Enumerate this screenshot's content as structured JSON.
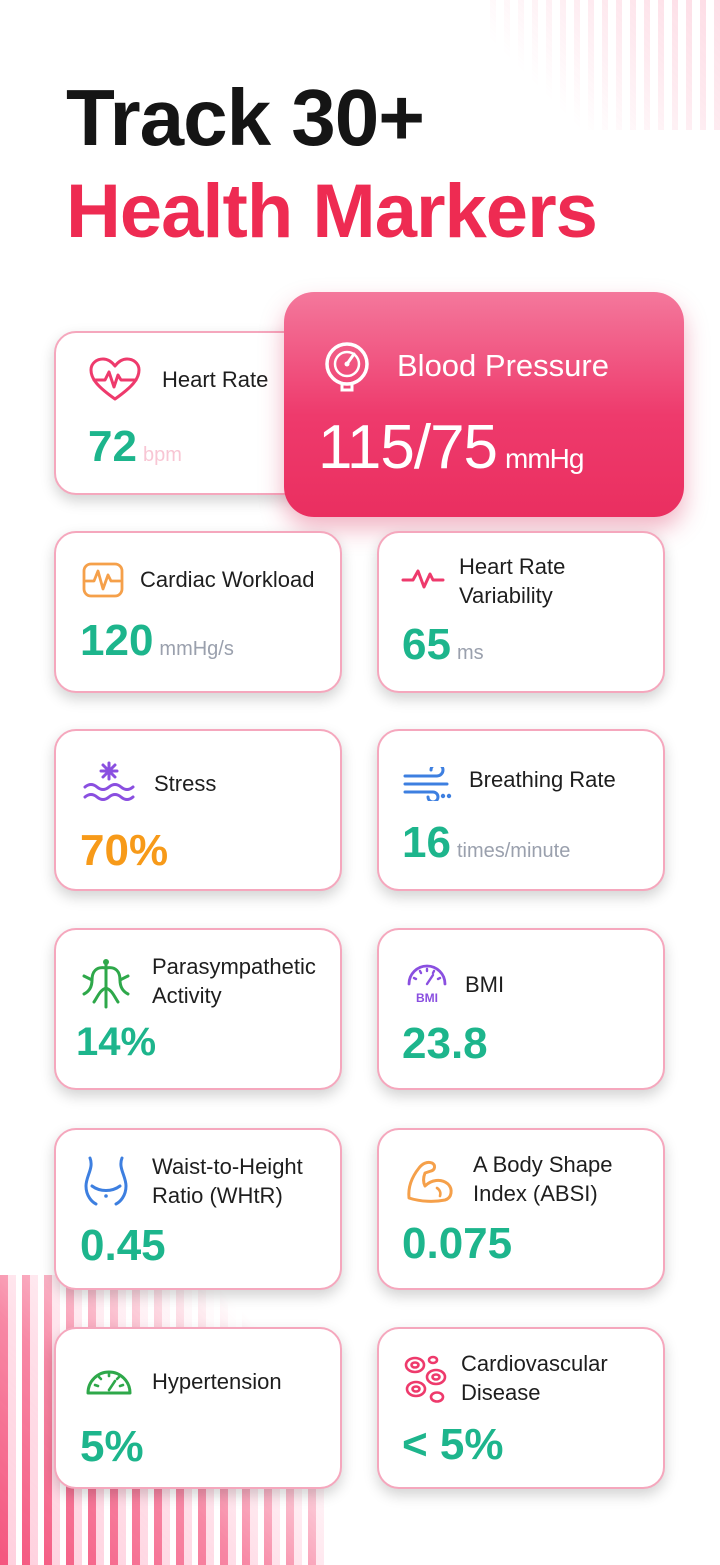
{
  "header": {
    "title_line1": "Track 30+",
    "title_line2": "Health Markers"
  },
  "colors": {
    "accent": "#ee2b52",
    "value_teal": "#1db58c",
    "value_orange": "#f79a19",
    "card_border": "#f5a7bd"
  },
  "cards": {
    "heart_rate": {
      "label": "Heart Rate",
      "value": "72",
      "unit": "bpm",
      "icon": "heart-pulse-icon"
    },
    "blood_pressure": {
      "label": "Blood Pressure",
      "value": "115/75",
      "unit": "mmHg",
      "icon": "pressure-gauge-icon"
    },
    "cardiac_workload": {
      "label": "Cardiac Workload",
      "value": "120",
      "unit": "mmHg/s",
      "icon": "cardiac-workload-icon"
    },
    "hrv": {
      "label_line1": "Heart Rate",
      "label_line2": "Variability",
      "value": "65",
      "unit": "ms",
      "icon": "pulse-line-icon"
    },
    "stress": {
      "label": "Stress",
      "value": "70%",
      "icon": "stress-waves-icon"
    },
    "breathing_rate": {
      "label": "Breathing Rate",
      "value": "16",
      "unit": "times/minute",
      "icon": "wind-icon"
    },
    "parasympathetic": {
      "label_line1": "Parasympathetic",
      "label_line2": "Activity",
      "value": "14%",
      "icon": "nervous-system-icon"
    },
    "bmi": {
      "label": "BMI",
      "icon_text": "BMI",
      "value": "23.8",
      "icon": "bmi-gauge-icon"
    },
    "whtr": {
      "label_line1": "Waist-to-Height",
      "label_line2": "Ratio (WHtR)",
      "value": "0.45",
      "icon": "waist-icon"
    },
    "absi": {
      "label_line1": "A Body Shape",
      "label_line2": "Index (ABSI)",
      "value": "0.075",
      "icon": "flexed-arm-icon"
    },
    "hypertension": {
      "label": "Hypertension",
      "value": "5%",
      "icon": "speedometer-icon"
    },
    "cvd": {
      "label_line1": "Cardiovascular",
      "label_line2": "Disease",
      "value": "< 5%",
      "icon": "blood-cells-icon"
    }
  }
}
